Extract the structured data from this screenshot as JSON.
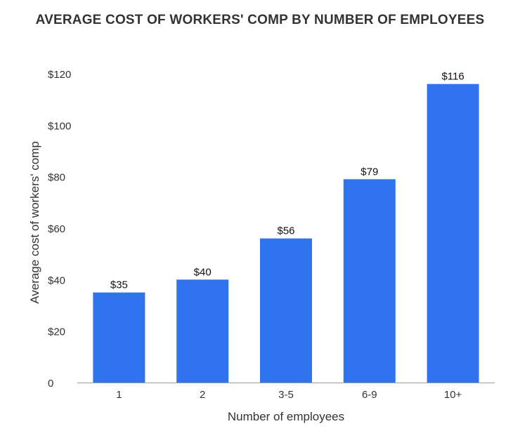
{
  "chart_data": {
    "type": "bar",
    "title": "AVERAGE COST OF WORKERS' COMP BY NUMBER OF EMPLOYEES",
    "xlabel": "Number of employees",
    "ylabel": "Average cost of workers' comp",
    "categories": [
      "1",
      "2",
      "3-5",
      "6-9",
      "10+"
    ],
    "values": [
      35,
      40,
      56,
      79,
      116
    ],
    "data_labels": [
      "$35",
      "$40",
      "$56",
      "$79",
      "$116"
    ],
    "yticks": [
      0,
      20,
      40,
      60,
      80,
      100,
      120
    ],
    "ytick_labels": [
      "0",
      "$20",
      "$40",
      "$60",
      "$80",
      "$100",
      "$120"
    ],
    "ylim": [
      0,
      120
    ],
    "grid": false,
    "legend": "none",
    "bar_color": "#2f73ee"
  }
}
